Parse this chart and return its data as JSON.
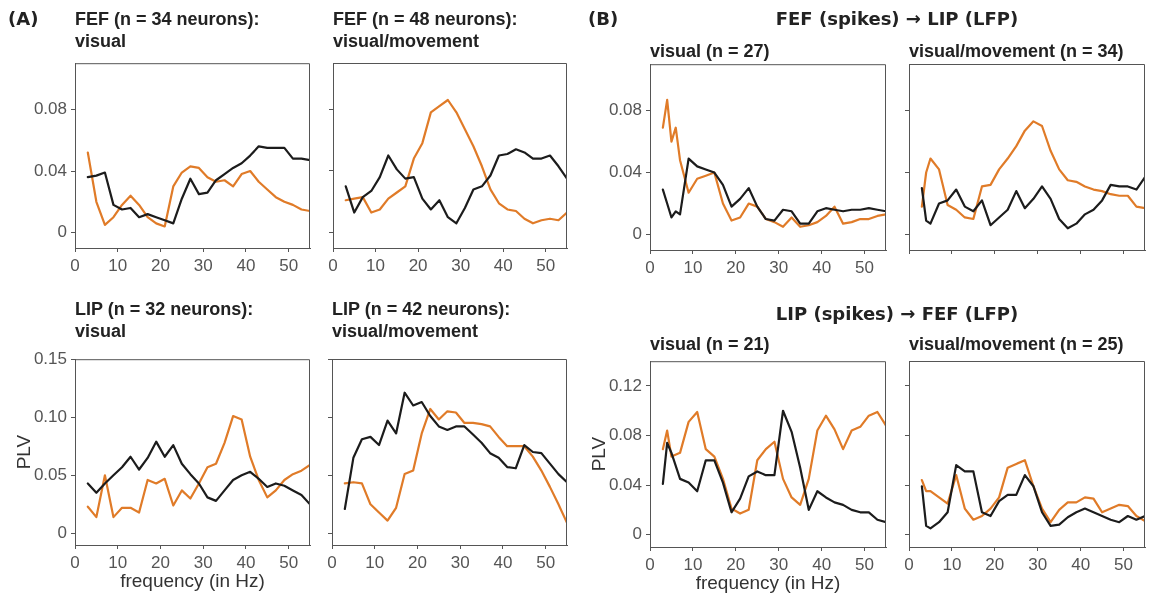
{
  "chart_data": [
    {
      "type": "line",
      "title": "FEF (n = 34 neurons): visual",
      "annotations": [
        "(A)"
      ],
      "marker": "none",
      "xlim": [
        0,
        55
      ],
      "xticks": [
        0,
        10,
        20,
        30,
        40,
        50
      ],
      "ylim": [
        -0.01,
        0.11
      ],
      "yticks": [
        0,
        0.04,
        0.08
      ],
      "x": [
        3,
        5,
        7,
        9,
        11,
        13,
        15,
        17,
        19,
        21,
        23,
        25,
        27,
        29,
        31,
        33,
        35,
        37,
        39,
        41,
        43,
        45,
        47,
        49,
        51,
        53,
        55
      ],
      "series": [
        {
          "color": "#1c1c1c",
          "values": [
            0.036,
            0.037,
            0.039,
            0.018,
            0.015,
            0.016,
            0.01,
            0.012,
            0.01,
            0.008,
            0.006,
            0.022,
            0.035,
            0.025,
            0.026,
            0.034,
            0.038,
            0.042,
            0.045,
            0.05,
            0.056,
            0.055,
            0.055,
            0.055,
            0.048,
            0.048,
            0.047
          ]
        },
        {
          "color": "#e07b28",
          "values": [
            0.052,
            0.02,
            0.005,
            0.01,
            0.018,
            0.024,
            0.018,
            0.01,
            0.006,
            0.004,
            0.03,
            0.039,
            0.043,
            0.042,
            0.036,
            0.033,
            0.034,
            0.03,
            0.038,
            0.04,
            0.033,
            0.028,
            0.023,
            0.02,
            0.018,
            0.015,
            0.014
          ]
        }
      ]
    },
    {
      "type": "line",
      "title": "FEF (n = 48 neurons): visual/movement",
      "marker": "none",
      "tick_labels": "x",
      "xlim": [
        0,
        55
      ],
      "xticks": [
        0,
        10,
        20,
        30,
        40,
        50
      ],
      "ylim": [
        -0.01,
        0.11
      ],
      "yticks": [
        0,
        0.04,
        0.08
      ],
      "x": [
        3,
        5,
        7,
        9,
        11,
        13,
        15,
        17,
        19,
        21,
        23,
        25,
        27,
        29,
        31,
        33,
        35,
        37,
        39,
        41,
        43,
        45,
        47,
        49,
        51,
        53,
        55
      ],
      "series": [
        {
          "color": "#1c1c1c",
          "values": [
            0.03,
            0.013,
            0.023,
            0.027,
            0.036,
            0.05,
            0.041,
            0.035,
            0.036,
            0.022,
            0.015,
            0.021,
            0.01,
            0.006,
            0.016,
            0.028,
            0.03,
            0.037,
            0.05,
            0.051,
            0.054,
            0.052,
            0.048,
            0.048,
            0.05,
            0.043,
            0.035
          ]
        },
        {
          "color": "#e07b28",
          "values": [
            0.021,
            0.022,
            0.023,
            0.013,
            0.015,
            0.022,
            0.026,
            0.03,
            0.048,
            0.058,
            0.078,
            0.082,
            0.086,
            0.078,
            0.067,
            0.056,
            0.043,
            0.028,
            0.019,
            0.015,
            0.014,
            0.009,
            0.006,
            0.008,
            0.009,
            0.008,
            0.013
          ]
        }
      ]
    },
    {
      "type": "line",
      "title": "visual (n = 27)",
      "annotations": [
        "(B)",
        "FEF (spikes) → LIP (LFP)"
      ],
      "marker": "none",
      "xlim": [
        0,
        55
      ],
      "xticks": [
        0,
        10,
        20,
        30,
        40,
        50
      ],
      "ylim": [
        -0.01,
        0.11
      ],
      "yticks": [
        0,
        0.04,
        0.08
      ],
      "x": [
        3,
        4,
        5,
        6,
        7,
        9,
        11,
        13,
        15,
        17,
        19,
        21,
        23,
        25,
        27,
        29,
        31,
        33,
        35,
        37,
        39,
        41,
        43,
        45,
        47,
        49,
        51,
        53,
        55
      ],
      "series": [
        {
          "color": "#1c1c1c",
          "values": [
            0.029,
            0.02,
            0.011,
            0.015,
            0.013,
            0.049,
            0.044,
            0.042,
            0.04,
            0.032,
            0.018,
            0.023,
            0.03,
            0.018,
            0.01,
            0.009,
            0.016,
            0.015,
            0.007,
            0.007,
            0.015,
            0.017,
            0.016,
            0.015,
            0.016,
            0.016,
            0.017,
            0.016,
            0.015
          ]
        },
        {
          "color": "#e07b28",
          "values": [
            0.069,
            0.087,
            0.06,
            0.069,
            0.048,
            0.027,
            0.036,
            0.038,
            0.04,
            0.02,
            0.009,
            0.011,
            0.02,
            0.018,
            0.01,
            0.008,
            0.005,
            0.011,
            0.005,
            0.006,
            0.008,
            0.012,
            0.018,
            0.007,
            0.008,
            0.01,
            0.01,
            0.012,
            0.013
          ]
        }
      ]
    },
    {
      "type": "line",
      "title": "visual/movement (n = 34)",
      "marker": "none",
      "tick_labels": false,
      "xlim": [
        0,
        55
      ],
      "xticks": [
        0,
        10,
        20,
        30,
        40,
        50
      ],
      "ylim": [
        -0.01,
        0.11
      ],
      "yticks": [
        0,
        0.04,
        0.08
      ],
      "x": [
        3,
        4,
        5,
        7,
        9,
        11,
        13,
        15,
        17,
        19,
        21,
        23,
        25,
        27,
        29,
        31,
        33,
        35,
        37,
        39,
        41,
        43,
        45,
        47,
        49,
        51,
        53,
        55
      ],
      "series": [
        {
          "color": "#1c1c1c",
          "values": [
            0.03,
            0.009,
            0.007,
            0.02,
            0.022,
            0.029,
            0.018,
            0.015,
            0.022,
            0.006,
            0.011,
            0.016,
            0.028,
            0.017,
            0.023,
            0.031,
            0.023,
            0.01,
            0.004,
            0.007,
            0.013,
            0.016,
            0.022,
            0.032,
            0.031,
            0.031,
            0.029,
            0.037
          ]
        },
        {
          "color": "#e07b28",
          "values": [
            0.018,
            0.04,
            0.049,
            0.042,
            0.019,
            0.016,
            0.011,
            0.01,
            0.031,
            0.032,
            0.042,
            0.049,
            0.057,
            0.067,
            0.073,
            0.07,
            0.054,
            0.042,
            0.035,
            0.034,
            0.031,
            0.029,
            0.028,
            0.026,
            0.025,
            0.025,
            0.018,
            0.017
          ]
        }
      ]
    },
    {
      "type": "line",
      "title": "LIP (n = 32 neurons): visual",
      "xlabel": "frequency (in Hz)",
      "ylabel": "PLV",
      "marker": "none",
      "xlim": [
        0,
        55
      ],
      "xticks": [
        0,
        10,
        20,
        30,
        40,
        50
      ],
      "ylim": [
        -0.01,
        0.15
      ],
      "yticks": [
        0,
        {
          "value": 0.05,
          "label": "0.05"
        },
        {
          "value": 0.1,
          "label": "0.10"
        },
        {
          "value": 0.15,
          "label": "0.15"
        }
      ],
      "x": [
        3,
        5,
        7,
        9,
        11,
        13,
        15,
        17,
        19,
        21,
        23,
        25,
        27,
        29,
        31,
        33,
        35,
        37,
        39,
        41,
        43,
        45,
        47,
        49,
        51,
        53,
        55
      ],
      "series": [
        {
          "color": "#1c1c1c",
          "values": [
            0.043,
            0.035,
            0.043,
            0.05,
            0.057,
            0.066,
            0.055,
            0.065,
            0.079,
            0.066,
            0.076,
            0.06,
            0.051,
            0.043,
            0.031,
            0.028,
            0.037,
            0.046,
            0.05,
            0.053,
            0.047,
            0.04,
            0.043,
            0.041,
            0.037,
            0.033,
            0.025
          ]
        },
        {
          "color": "#e07b28",
          "values": [
            0.023,
            0.014,
            0.05,
            0.014,
            0.022,
            0.022,
            0.018,
            0.046,
            0.043,
            0.047,
            0.024,
            0.037,
            0.03,
            0.043,
            0.057,
            0.06,
            0.078,
            0.101,
            0.098,
            0.066,
            0.046,
            0.031,
            0.037,
            0.046,
            0.051,
            0.054,
            0.059
          ]
        }
      ]
    },
    {
      "type": "line",
      "title": "LIP (n = 42 neurons): visual/movement",
      "marker": "none",
      "tick_labels": "x",
      "xlim": [
        0,
        55
      ],
      "xticks": [
        0,
        10,
        20,
        30,
        40,
        50
      ],
      "ylim": [
        -0.01,
        0.15
      ],
      "yticks": [
        0,
        0.05,
        0.1,
        0.15
      ],
      "x": [
        3,
        5,
        7,
        9,
        11,
        13,
        15,
        17,
        19,
        21,
        23,
        25,
        27,
        29,
        31,
        33,
        35,
        37,
        39,
        41,
        43,
        45,
        47,
        49,
        51,
        53,
        55
      ],
      "series": [
        {
          "color": "#1c1c1c",
          "values": [
            0.021,
            0.065,
            0.081,
            0.083,
            0.076,
            0.097,
            0.086,
            0.121,
            0.11,
            0.113,
            0.101,
            0.092,
            0.089,
            0.092,
            0.092,
            0.085,
            0.078,
            0.069,
            0.065,
            0.057,
            0.056,
            0.076,
            0.07,
            0.069,
            0.06,
            0.051,
            0.044
          ]
        },
        {
          "color": "#e07b28",
          "values": [
            0.043,
            0.044,
            0.043,
            0.025,
            0.018,
            0.011,
            0.022,
            0.051,
            0.054,
            0.086,
            0.107,
            0.098,
            0.105,
            0.104,
            0.095,
            0.095,
            0.094,
            0.092,
            0.083,
            0.075,
            0.075,
            0.075,
            0.066,
            0.054,
            0.04,
            0.025,
            0.009
          ]
        }
      ]
    },
    {
      "type": "line",
      "title": "visual (n = 21)",
      "annotations": [
        "LIP (spikes) → FEF (LFP)"
      ],
      "xlabel": "frequency (in Hz)",
      "ylabel": "PLV",
      "marker": "none",
      "xlim": [
        0,
        55
      ],
      "xticks": [
        0,
        10,
        20,
        30,
        40,
        50
      ],
      "ylim": [
        -0.01,
        0.14
      ],
      "yticks": [
        0,
        0.04,
        0.08,
        0.12
      ],
      "x": [
        3,
        4,
        5,
        7,
        9,
        11,
        13,
        15,
        17,
        19,
        21,
        23,
        25,
        27,
        29,
        31,
        33,
        35,
        37,
        39,
        41,
        43,
        45,
        47,
        49,
        51,
        53,
        55
      ],
      "series": [
        {
          "color": "#1c1c1c",
          "values": [
            0.041,
            0.074,
            0.066,
            0.045,
            0.042,
            0.035,
            0.06,
            0.06,
            0.042,
            0.018,
            0.029,
            0.047,
            0.051,
            0.048,
            0.048,
            0.1,
            0.083,
            0.054,
            0.02,
            0.035,
            0.03,
            0.026,
            0.024,
            0.02,
            0.018,
            0.018,
            0.012,
            0.01
          ]
        },
        {
          "color": "#e07b28",
          "values": [
            0.069,
            0.084,
            0.063,
            0.066,
            0.091,
            0.099,
            0.069,
            0.063,
            0.045,
            0.021,
            0.017,
            0.02,
            0.06,
            0.069,
            0.075,
            0.045,
            0.03,
            0.024,
            0.045,
            0.084,
            0.096,
            0.085,
            0.069,
            0.084,
            0.087,
            0.096,
            0.099,
            0.088
          ]
        }
      ]
    },
    {
      "type": "line",
      "title": "visual/movement (n = 25)",
      "marker": "none",
      "tick_labels": "x",
      "xlim": [
        0,
        55
      ],
      "xticks": [
        0,
        10,
        20,
        30,
        40,
        50
      ],
      "ylim": [
        -0.01,
        0.14
      ],
      "yticks": [
        0,
        0.04,
        0.08,
        0.12
      ],
      "x": [
        3,
        4,
        5,
        7,
        9,
        11,
        13,
        15,
        17,
        19,
        21,
        23,
        25,
        27,
        29,
        31,
        33,
        35,
        37,
        39,
        41,
        43,
        45,
        47,
        49,
        51,
        53,
        55
      ],
      "series": [
        {
          "color": "#1c1c1c",
          "values": [
            0.039,
            0.007,
            0.005,
            0.01,
            0.018,
            0.056,
            0.051,
            0.051,
            0.018,
            0.015,
            0.027,
            0.032,
            0.032,
            0.048,
            0.039,
            0.018,
            0.007,
            0.008,
            0.014,
            0.018,
            0.021,
            0.018,
            0.015,
            0.012,
            0.01,
            0.015,
            0.012,
            0.015
          ]
        },
        {
          "color": "#e07b28",
          "values": [
            0.044,
            0.035,
            0.035,
            0.03,
            0.025,
            0.048,
            0.021,
            0.012,
            0.015,
            0.021,
            0.03,
            0.054,
            0.057,
            0.06,
            0.039,
            0.021,
            0.01,
            0.02,
            0.026,
            0.026,
            0.03,
            0.029,
            0.018,
            0.021,
            0.024,
            0.023,
            0.015,
            0.011
          ]
        }
      ]
    }
  ]
}
